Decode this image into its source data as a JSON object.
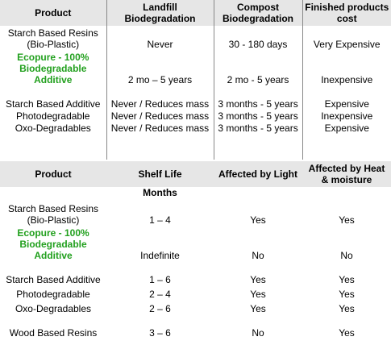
{
  "table1": {
    "header": [
      "Product",
      "Landfill Biodegradation",
      "Compost Biodegradation",
      "Finished products cost"
    ],
    "rows": [
      [
        "Starch Based Resins (Bio-Plastic)",
        "Never",
        "30 - 180 days",
        "Very Expensive"
      ],
      [
        "Ecopure - 100% Biodegradable Additive",
        "2 mo – 5 years",
        "2 mo - 5 years",
        "Inexpensive"
      ],
      [
        "Starch Based Additive",
        "Never / Reduces mass",
        "3 months - 5 years",
        "Expensive"
      ],
      [
        "Photodegradable",
        "Never / Reduces mass",
        "3 months - 5 years",
        "Inexpensive"
      ],
      [
        "Oxo-Degradables",
        "Never / Reduces mass",
        "3 months - 5 years",
        "Expensive"
      ]
    ]
  },
  "table2": {
    "header": [
      "Product",
      "Shelf Life",
      "Affected by Light",
      "Affected by Heat & moisture"
    ],
    "subheader": "Months",
    "rows": [
      [
        "Starch Based Resins (Bio-Plastic)",
        "1 – 4",
        "Yes",
        "Yes"
      ],
      [
        "Ecopure - 100% Biodegradable Additive",
        "Indefinite",
        "No",
        "No"
      ],
      [
        "Starch Based Additive",
        "1 – 6",
        "Yes",
        "Yes"
      ],
      [
        "Photodegradable",
        "2 – 4",
        "Yes",
        "Yes"
      ],
      [
        "Oxo-Degradables",
        "2 – 6",
        "Yes",
        "Yes"
      ],
      [
        "Wood Based Resins",
        "3 – 6",
        "No",
        "Yes"
      ]
    ]
  }
}
